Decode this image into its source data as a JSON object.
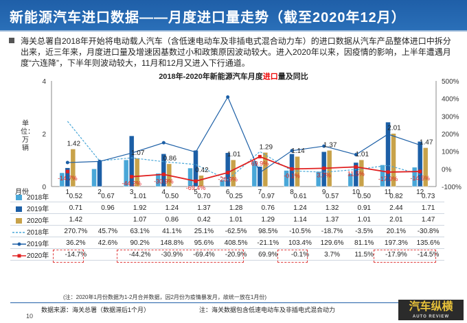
{
  "header": {
    "title": "新能源汽车进口数据——月度进口量走势（截至2020年12月）"
  },
  "description": "海关总署自2018年开始将电动载人汽车（含低速电动车及非插电式混合动力车）的进口数据从汽车产品整体进口中拆分出来，近三年来，月度进口量及增速因基数过小和政策原因波动较大。进入2020年以来，因疫情的影响，上半年遭遇月度“六连降”，下半年则波动较大，11月和12月又进入下行通道。",
  "chart_title_pre": "2018年-2020年新能源汽车月度",
  "chart_title_hl": "进口",
  "chart_title_post": "量及同比",
  "ylabel": "单位：万辆",
  "table_header_label": "月份",
  "chart_data": {
    "type": "bar",
    "categories": [
      "1",
      "2",
      "3",
      "4",
      "5",
      "6",
      "7",
      "8",
      "9",
      "10",
      "11",
      "12"
    ],
    "ylim": [
      0,
      4
    ],
    "y2lim": [
      -100,
      500
    ],
    "yticks": [
      "0",
      "2",
      "4"
    ],
    "y2ticks": [
      "-100%",
      "0%",
      "100%",
      "200%",
      "300%",
      "400%",
      "500%"
    ],
    "series": [
      {
        "name": "2018年",
        "values": [
          0.52,
          0.67,
          1.01,
          0.5,
          0.7,
          0.25,
          0.97,
          0.61,
          0.57,
          0.5,
          0.82,
          0.73
        ],
        "color": "#49a7d8"
      },
      {
        "name": "2019年",
        "values": [
          0.71,
          0.96,
          1.92,
          1.24,
          1.37,
          1.28,
          0.76,
          1.24,
          1.32,
          0.91,
          2.44,
          1.71
        ],
        "color": "#1c5fa6"
      },
      {
        "name": "2020年",
        "values": [
          1.42,
          null,
          1.07,
          0.86,
          0.42,
          1.01,
          1.29,
          1.14,
          1.37,
          1.01,
          2.01,
          1.47
        ],
        "color": "#c8a24a"
      }
    ],
    "growth": [
      {
        "name": "2018年",
        "values": [
          270.7,
          45.7,
          63.1,
          41.1,
          25.1,
          -62.5,
          98.5,
          -10.5,
          -18.7,
          -3.5,
          20.1,
          -30.8
        ],
        "color": "#49a7d8"
      },
      {
        "name": "2019年",
        "values": [
          36.2,
          42.6,
          90.2,
          148.8,
          95.6,
          408.5,
          -21.1,
          103.4,
          129.6,
          81.1,
          197.3,
          135.6
        ],
        "color": "#1c5fa6"
      },
      {
        "name": "2020年",
        "values": [
          -14.7,
          null,
          -44.2,
          -30.9,
          -69.4,
          -20.9,
          69.9,
          -0.1,
          3.7,
          11.5,
          -17.9,
          -14.5
        ],
        "color": "#e02020"
      }
    ],
    "bar_labels_2020": [
      "1.42",
      "",
      "1.07",
      "0.86",
      "0.42",
      "1.01",
      "1.29",
      "1.14",
      "1.37",
      "1.01",
      "2.01",
      "1.47"
    ],
    "growth_labels_2020": [
      "-14.7%",
      "",
      "-44.2%",
      "-30.9%",
      "-69.4%",
      "-20.9%",
      "69.9%",
      "-0.1%",
      "3.7%",
      "11.5%",
      "-17.9%",
      "-14.5%"
    ]
  },
  "table": {
    "rows": [
      {
        "label": "2018年",
        "cells": [
          "0.52",
          "0.67",
          "1.01",
          "0.50",
          "0.70",
          "0.25",
          "0.97",
          "0.61",
          "0.57",
          "0.50",
          "0.82",
          "0.73"
        ]
      },
      {
        "label": "2019年",
        "cells": [
          "0.71",
          "0.96",
          "1.92",
          "1.24",
          "1.37",
          "1.28",
          "0.76",
          "1.24",
          "1.32",
          "0.91",
          "2.44",
          "1.71"
        ]
      },
      {
        "label": "2020年",
        "cells": [
          "1.42",
          "",
          "1.07",
          "0.86",
          "0.42",
          "1.01",
          "1.29",
          "1.14",
          "1.37",
          "1.01",
          "2.01",
          "1.47"
        ]
      },
      {
        "label": "2018年",
        "cells": [
          "270.7%",
          "45.7%",
          "63.1%",
          "41.1%",
          "25.1%",
          "-62.5%",
          "98.5%",
          "-10.5%",
          "-18.7%",
          "-3.5%",
          "20.1%",
          "-30.8%"
        ]
      },
      {
        "label": "2019年",
        "cells": [
          "36.2%",
          "42.6%",
          "90.2%",
          "148.8%",
          "95.6%",
          "408.5%",
          "-21.1%",
          "103.4%",
          "129.6%",
          "81.1%",
          "197.3%",
          "135.6%"
        ]
      },
      {
        "label": "2020年",
        "cells": [
          "-14.7%",
          "",
          "-44.2%",
          "-30.9%",
          "-69.4%",
          "-20.9%",
          "69.9%",
          "-0.1%",
          "3.7%",
          "11.5%",
          "-17.9%",
          "-14.5%"
        ]
      }
    ]
  },
  "note": "(注：2020年1月份数据为1-2月合并数据，因2月份为疫情暴发月，故统一放在1月份)",
  "source": "数据来源：海关总署（数据滞后1个月）",
  "source_note": "注：海关数据包含低速电动车及非插电式混合动力",
  "page_number": "10",
  "logo_text": "汽车纵横",
  "logo_sub": "AUTO REVIEW"
}
